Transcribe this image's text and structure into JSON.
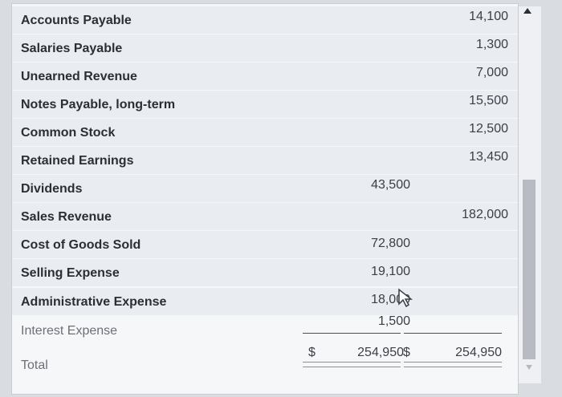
{
  "rows": [
    {
      "account": "Accounts Payable",
      "debit": "",
      "credit": "14,100"
    },
    {
      "account": "Salaries Payable",
      "debit": "",
      "credit": "1,300"
    },
    {
      "account": "Unearned Revenue",
      "debit": "",
      "credit": "7,000"
    },
    {
      "account": "Notes Payable, long-term",
      "debit": "",
      "credit": "15,500"
    },
    {
      "account": "Common Stock",
      "debit": "",
      "credit": "12,500"
    },
    {
      "account": "Retained Earnings",
      "debit": "",
      "credit": "13,450"
    },
    {
      "account": "Dividends",
      "debit": "43,500",
      "credit": ""
    },
    {
      "account": "Sales Revenue",
      "debit": "",
      "credit": "182,000"
    },
    {
      "account": "Cost of Goods Sold",
      "debit": "72,800",
      "credit": ""
    },
    {
      "account": "Selling Expense",
      "debit": "19,100",
      "credit": ""
    },
    {
      "account": "Administrative Expense",
      "debit": "18,000",
      "credit": ""
    },
    {
      "account": "Interest Expense",
      "debit": "1,500",
      "credit": ""
    }
  ],
  "total": {
    "label": "Total",
    "debit_symbol": "$",
    "debit": "254,950",
    "credit_symbol": "$",
    "credit": "254,950"
  },
  "icons": {
    "cursor": "mouse-pointer-icon",
    "scroll_up": "scroll-up-arrow-icon",
    "scroll_down": "scroll-down-arrow-icon"
  }
}
